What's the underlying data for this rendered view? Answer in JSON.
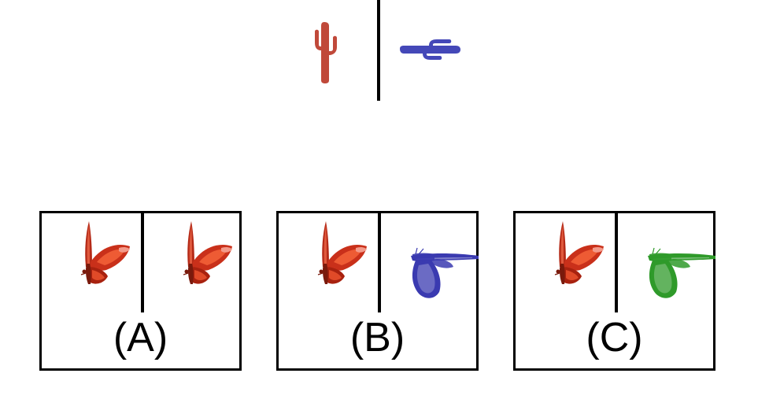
{
  "example": {
    "left_icon": "cactus-icon",
    "right_icon": "cactus-rotated-icon",
    "left_color": "#c0493a",
    "right_color": "#4448b8"
  },
  "options": [
    {
      "label": "(A)",
      "left_icon": "butterfly-icon",
      "right_icon": "butterfly-icon",
      "right_color": "#d93a1e"
    },
    {
      "label": "(B)",
      "left_icon": "butterfly-icon",
      "right_icon": "butterfly-rotated-icon",
      "right_color": "#3a3ab0"
    },
    {
      "label": "(C)",
      "left_icon": "butterfly-icon",
      "right_icon": "butterfly-rotated-icon",
      "right_color": "#2f9a2a"
    }
  ],
  "colors": {
    "butterfly_red": "#d93a1e",
    "line": "#000000"
  }
}
